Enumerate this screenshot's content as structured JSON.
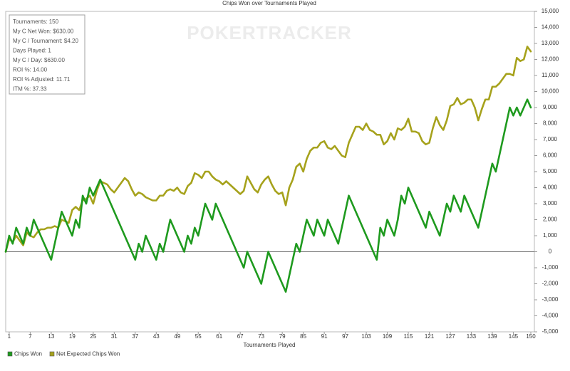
{
  "chart_data": {
    "type": "line",
    "title": "Chips Won over Tournaments Played",
    "x_label": "Tournaments Played",
    "watermark": "POKERTRACKER",
    "stats_box": [
      "Tournaments: 150",
      "My C Net Won: $630.00",
      "My C / Tournament: $4.20",
      "Days Played: 1",
      "My C / Day: $630.00",
      "ROI %: 14.00",
      "ROI % Adjusted: 11.71",
      "ITM %: 37.33"
    ],
    "x": [
      0,
      1,
      2,
      3,
      4,
      5,
      6,
      7,
      8,
      9,
      10,
      11,
      12,
      13,
      14,
      15,
      16,
      17,
      18,
      19,
      20,
      21,
      22,
      23,
      24,
      25,
      26,
      27,
      28,
      29,
      30,
      31,
      32,
      33,
      34,
      35,
      36,
      37,
      38,
      39,
      40,
      41,
      42,
      43,
      44,
      45,
      46,
      47,
      48,
      49,
      50,
      51,
      52,
      53,
      54,
      55,
      56,
      57,
      58,
      59,
      60,
      61,
      62,
      63,
      64,
      65,
      66,
      67,
      68,
      69,
      70,
      71,
      72,
      73,
      74,
      75,
      76,
      77,
      78,
      79,
      80,
      81,
      82,
      83,
      84,
      85,
      86,
      87,
      88,
      89,
      90,
      91,
      92,
      93,
      94,
      95,
      96,
      97,
      98,
      99,
      100,
      101,
      102,
      103,
      104,
      105,
      106,
      107,
      108,
      109,
      110,
      111,
      112,
      113,
      114,
      115,
      116,
      117,
      118,
      119,
      120,
      121,
      122,
      123,
      124,
      125,
      126,
      127,
      128,
      129,
      130,
      131,
      132,
      133,
      134,
      135,
      136,
      137,
      138,
      139,
      140,
      141,
      142,
      143,
      144,
      145,
      146,
      147,
      148,
      149,
      150
    ],
    "series": [
      {
        "name": "Chips Won",
        "color": "#1e9a1e",
        "values": [
          0,
          1000,
          500,
          1500,
          1000,
          500,
          1500,
          1000,
          2000,
          1500,
          1000,
          500,
          0,
          -500,
          500,
          1500,
          2500,
          2000,
          1500,
          1000,
          2000,
          1500,
          3500,
          3000,
          4000,
          3500,
          4000,
          4500,
          4000,
          3500,
          3000,
          2500,
          2000,
          1500,
          1000,
          500,
          0,
          -500,
          500,
          0,
          1000,
          500,
          0,
          -500,
          500,
          0,
          1000,
          2000,
          1500,
          1000,
          500,
          0,
          1000,
          500,
          1500,
          1000,
          2000,
          3000,
          2500,
          2000,
          3000,
          2500,
          2000,
          1500,
          1000,
          500,
          0,
          -500,
          -1000,
          0,
          -500,
          -1000,
          -1500,
          -2000,
          -1000,
          0,
          -500,
          -1000,
          -1500,
          -2000,
          -2500,
          -1500,
          -500,
          500,
          0,
          1000,
          2000,
          1500,
          1000,
          2000,
          1500,
          1000,
          2000,
          1500,
          1000,
          500,
          1500,
          2500,
          3500,
          3000,
          2500,
          2000,
          1500,
          1000,
          500,
          0,
          -500,
          1500,
          1000,
          2000,
          1500,
          1000,
          2000,
          3500,
          3000,
          4000,
          3500,
          3000,
          2500,
          2000,
          1500,
          2500,
          2000,
          1500,
          1000,
          2000,
          3000,
          2500,
          3500,
          3000,
          2500,
          3500,
          3000,
          2500,
          2000,
          1500,
          2500,
          3500,
          4500,
          5500,
          5000,
          6000,
          7000,
          8000,
          9000,
          8500,
          9000,
          8500,
          9000,
          9500,
          9000
        ]
      },
      {
        "name": "Net Expected Chips Won",
        "color": "#a6a21c",
        "values": [
          0,
          800,
          600,
          1000,
          700,
          400,
          1200,
          1000,
          900,
          1200,
          1400,
          1400,
          1500,
          1500,
          1600,
          1500,
          2000,
          1900,
          1800,
          2600,
          2800,
          2600,
          3200,
          3300,
          3500,
          3000,
          3800,
          4400,
          4300,
          4200,
          3900,
          3700,
          4000,
          4300,
          4600,
          4400,
          3900,
          3500,
          3700,
          3600,
          3400,
          3300,
          3200,
          3200,
          3500,
          3500,
          3800,
          3900,
          3800,
          4000,
          3700,
          3600,
          4100,
          4300,
          4900,
          4800,
          4600,
          5000,
          5000,
          4700,
          4500,
          4400,
          4200,
          4400,
          4200,
          4000,
          3800,
          3600,
          3800,
          4700,
          4300,
          3900,
          3700,
          4200,
          4500,
          4700,
          4200,
          3800,
          3600,
          3700,
          2900,
          4000,
          4500,
          5300,
          5500,
          5000,
          5800,
          6300,
          6500,
          6500,
          6800,
          6900,
          6500,
          6400,
          6600,
          6300,
          6000,
          5900,
          6800,
          7300,
          7800,
          7800,
          7600,
          8000,
          7600,
          7500,
          7300,
          7300,
          6700,
          6900,
          7400,
          7000,
          7700,
          7600,
          7800,
          8300,
          7500,
          7500,
          7400,
          6900,
          6700,
          6800,
          7700,
          8400,
          7900,
          7600,
          8200,
          9100,
          9200,
          9600,
          9200,
          9300,
          9500,
          9500,
          9000,
          8200,
          8900,
          9500,
          9500,
          10300,
          10300,
          10500,
          10800,
          11100,
          11100,
          11000,
          12100,
          11900,
          12000,
          12800,
          12500
        ]
      }
    ],
    "xlim": [
      0,
      150
    ],
    "xticks": [
      1,
      7,
      13,
      19,
      25,
      31,
      37,
      43,
      49,
      55,
      61,
      67,
      73,
      79,
      85,
      91,
      97,
      103,
      109,
      115,
      121,
      127,
      133,
      139,
      145,
      150
    ],
    "ylim": [
      -5000,
      15000
    ],
    "yticks": [
      {
        "value": -5000,
        "label": "-5,000"
      },
      {
        "value": -4000,
        "label": "-4,000"
      },
      {
        "value": -3000,
        "label": "-3,000"
      },
      {
        "value": -2000,
        "label": "-2,000"
      },
      {
        "value": -1000,
        "label": "-1,000"
      },
      0,
      {
        "value": 1000,
        "label": "1,000"
      },
      {
        "value": 2000,
        "label": "2,000"
      },
      {
        "value": 3000,
        "label": "3,000"
      },
      {
        "value": 4000,
        "label": "4,000"
      },
      {
        "value": 5000,
        "label": "5,000"
      },
      {
        "value": 6000,
        "label": "6,000"
      },
      {
        "value": 7000,
        "label": "7,000"
      },
      {
        "value": 8000,
        "label": "8,000"
      },
      {
        "value": 9000,
        "label": "9,000"
      },
      {
        "value": 10000,
        "label": "10,000"
      },
      {
        "value": 11000,
        "label": "11,000"
      },
      {
        "value": 12000,
        "label": "12,000"
      },
      {
        "value": 13000,
        "label": "13,000"
      },
      {
        "value": 14000,
        "label": "14,000"
      },
      {
        "value": 15000,
        "label": "15,000"
      }
    ],
    "y_axis_side": "right",
    "grid": false,
    "legend": "bottom-left"
  }
}
